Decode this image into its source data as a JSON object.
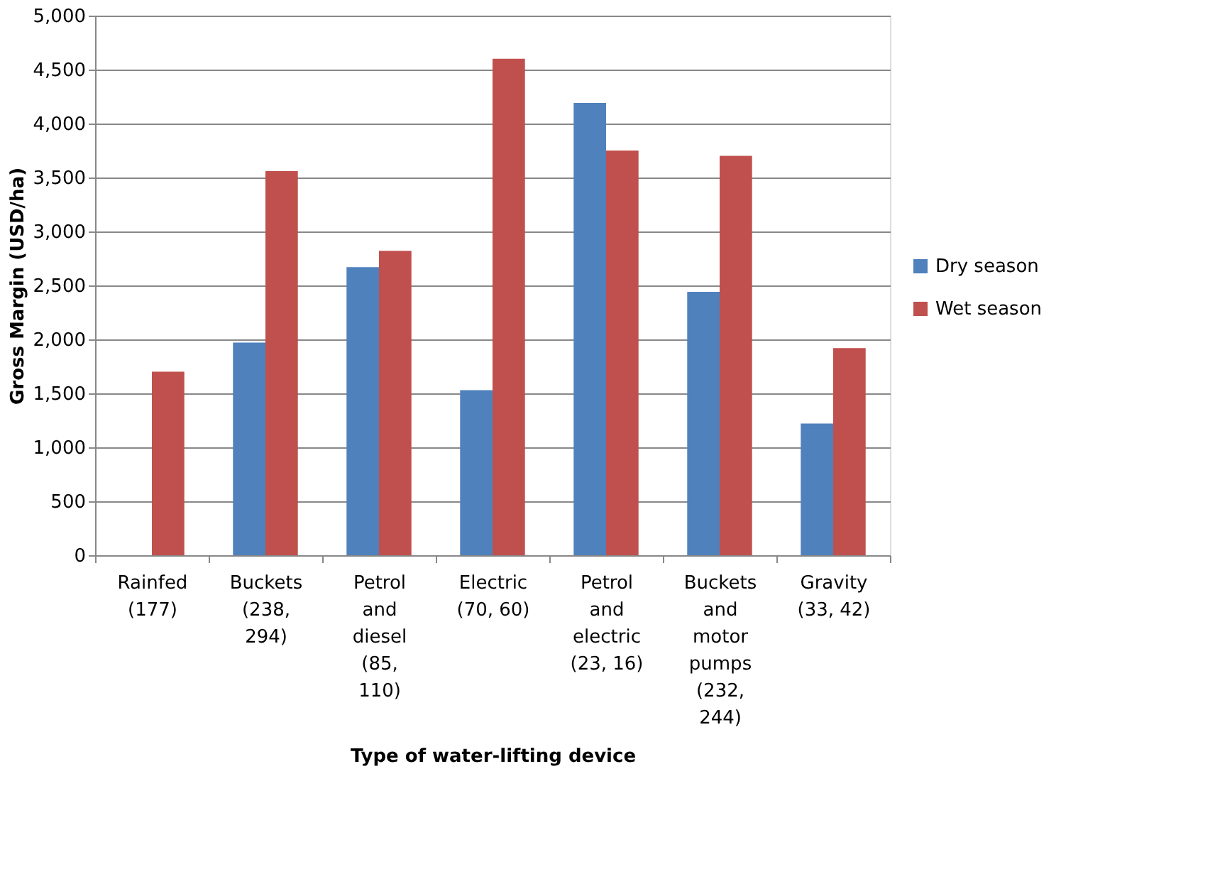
{
  "chart_data": {
    "type": "bar",
    "xlabel": "Type of water-lifting device",
    "ylabel": "Gross Margin (USD/ha)",
    "categories": [
      "Rainfed\n(177)",
      "Buckets\n(238,\n294)",
      "Petrol\nand\ndiesel\n(85,\n110)",
      "Electric\n(70, 60)",
      "Petrol\nand\nelectric\n(23, 16)",
      "Buckets\nand\nmotor\npumps\n(232,\n244)",
      "Gravity\n(33, 42)"
    ],
    "series": [
      {
        "name": "Dry season",
        "color": "#4f81bd",
        "values": [
          null,
          1970,
          2670,
          1530,
          4190,
          2440,
          1220
        ]
      },
      {
        "name": "Wet season",
        "color": "#c0504d",
        "values": [
          1700,
          3560,
          2820,
          4600,
          3750,
          3700,
          1920
        ]
      }
    ],
    "ylim": [
      0,
      5000
    ],
    "yticks": [
      0,
      500,
      {
        "value": 1000,
        "label": "1,000"
      },
      {
        "value": 1500,
        "label": "1,500"
      },
      {
        "value": 2000,
        "label": "2,000"
      },
      {
        "value": 2500,
        "label": "2,500"
      },
      {
        "value": 3000,
        "label": "3,000"
      },
      {
        "value": 3500,
        "label": "3,500"
      },
      {
        "value": 4000,
        "label": "4,000"
      },
      {
        "value": 4500,
        "label": "4,500"
      },
      {
        "value": 5000,
        "label": "5,000"
      }
    ],
    "grid": "y",
    "legend": "right"
  }
}
